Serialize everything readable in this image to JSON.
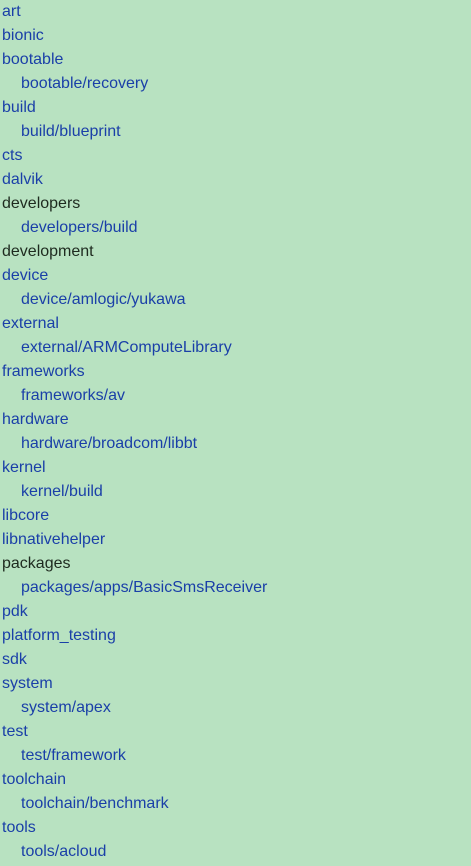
{
  "colors": {
    "background": "#b8e2c1",
    "link": "#1a3fa8",
    "plain_text": "#1e2a1f"
  },
  "tree": [
    {
      "label": "art",
      "level": 0,
      "link": true
    },
    {
      "label": "bionic",
      "level": 0,
      "link": true
    },
    {
      "label": "bootable",
      "level": 0,
      "link": true
    },
    {
      "label": "bootable/recovery",
      "level": 1,
      "link": true
    },
    {
      "label": "build",
      "level": 0,
      "link": true
    },
    {
      "label": "build/blueprint",
      "level": 1,
      "link": true
    },
    {
      "label": "cts",
      "level": 0,
      "link": true
    },
    {
      "label": "dalvik",
      "level": 0,
      "link": true
    },
    {
      "label": "developers",
      "level": 0,
      "link": false
    },
    {
      "label": "developers/build",
      "level": 1,
      "link": true
    },
    {
      "label": "development",
      "level": 0,
      "link": false
    },
    {
      "label": "device",
      "level": 0,
      "link": true
    },
    {
      "label": "device/amlogic/yukawa",
      "level": 1,
      "link": true
    },
    {
      "label": "external",
      "level": 0,
      "link": true
    },
    {
      "label": "external/ARMComputeLibrary",
      "level": 1,
      "link": true
    },
    {
      "label": "frameworks",
      "level": 0,
      "link": true
    },
    {
      "label": "frameworks/av",
      "level": 1,
      "link": true
    },
    {
      "label": "hardware",
      "level": 0,
      "link": true
    },
    {
      "label": "hardware/broadcom/libbt",
      "level": 1,
      "link": true
    },
    {
      "label": "kernel",
      "level": 0,
      "link": true
    },
    {
      "label": "kernel/build",
      "level": 1,
      "link": true
    },
    {
      "label": "libcore",
      "level": 0,
      "link": true
    },
    {
      "label": "libnativehelper",
      "level": 0,
      "link": true
    },
    {
      "label": "packages",
      "level": 0,
      "link": false
    },
    {
      "label": "packages/apps/BasicSmsReceiver",
      "level": 1,
      "link": true
    },
    {
      "label": "pdk",
      "level": 0,
      "link": true
    },
    {
      "label": "platform_testing",
      "level": 0,
      "link": true
    },
    {
      "label": "sdk",
      "level": 0,
      "link": true
    },
    {
      "label": "system",
      "level": 0,
      "link": true
    },
    {
      "label": "system/apex",
      "level": 1,
      "link": true
    },
    {
      "label": "test",
      "level": 0,
      "link": true
    },
    {
      "label": "test/framework",
      "level": 1,
      "link": true
    },
    {
      "label": "toolchain",
      "level": 0,
      "link": true
    },
    {
      "label": "toolchain/benchmark",
      "level": 1,
      "link": true
    },
    {
      "label": "tools",
      "level": 0,
      "link": true
    },
    {
      "label": "tools/acloud",
      "level": 1,
      "link": true
    }
  ]
}
